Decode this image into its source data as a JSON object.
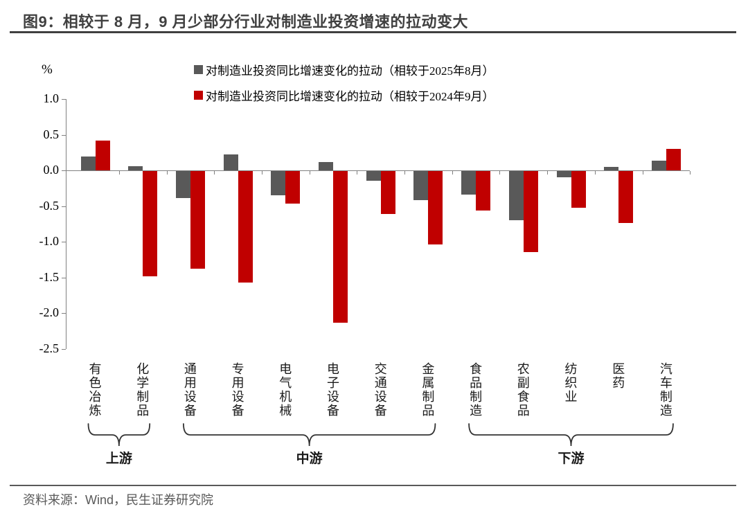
{
  "page": {
    "title": "图9：相较于 8 月，9 月少部分行业对制造业投资增速的拉动变大",
    "source": "资料来源：Wind，民生证券研究院"
  },
  "chart_data": {
    "type": "bar",
    "title": "相较于 8 月，9 月少部分行业对制造业投资增速的拉动变大",
    "unit": "%",
    "categories": [
      "有色冶炼",
      "化学制品",
      "通用设备",
      "专用设备",
      "电气机械",
      "电子设备",
      "交通设备",
      "金属制品",
      "食品制造",
      "农副食品",
      "纺织业",
      "医药",
      "汽车制造"
    ],
    "series": [
      {
        "name": "对制造业投资同比增速变化的拉动（相较于2025年8月）",
        "color": "#595959",
        "values": [
          0.2,
          0.06,
          -0.38,
          0.22,
          -0.34,
          0.12,
          -0.13,
          -0.41,
          -0.33,
          -0.69,
          -0.09,
          0.05,
          0.14
        ]
      },
      {
        "name": "对制造业投资同比增速变化的拉动（相较于2024年9月）",
        "color": "#C00000",
        "values": [
          0.42,
          -1.47,
          -1.37,
          -1.56,
          -0.45,
          -2.12,
          -0.6,
          -1.03,
          -0.55,
          -1.13,
          -0.51,
          -0.73,
          0.3
        ]
      }
    ],
    "y_ticks": [
      1.0,
      0.5,
      0.0,
      -0.5,
      -1.0,
      -1.5,
      -2.0,
      -2.5
    ],
    "ylim": [
      -2.5,
      1.0
    ],
    "grid": false,
    "legend_position": "top",
    "groups": [
      {
        "label": "上游",
        "from": 0,
        "to": 1
      },
      {
        "label": "中游",
        "from": 2,
        "to": 7
      },
      {
        "label": "下游",
        "from": 8,
        "to": 12
      }
    ]
  }
}
